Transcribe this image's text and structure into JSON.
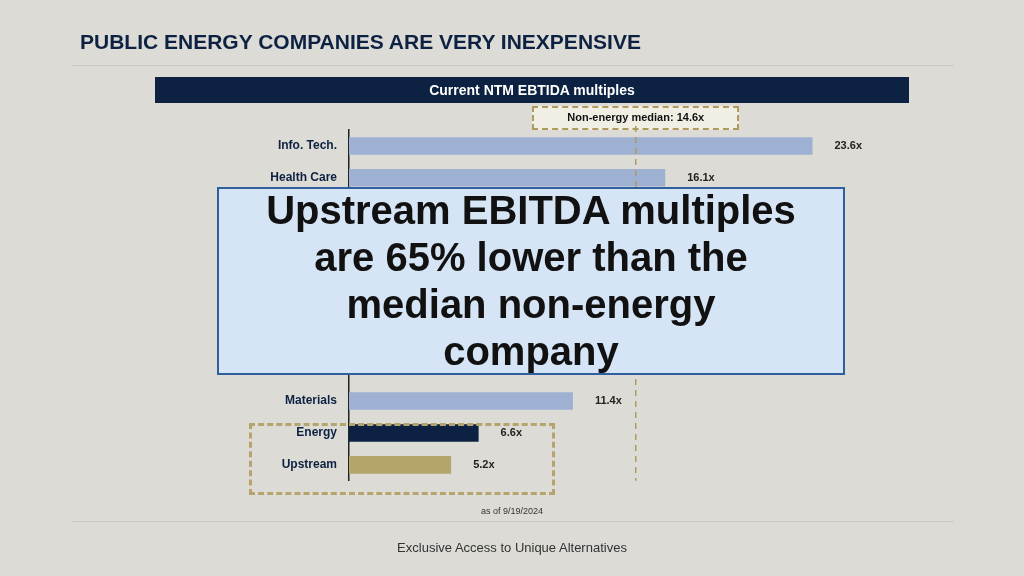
{
  "chart_data": {
    "type": "bar",
    "orientation": "horizontal",
    "title": "PUBLIC ENERGY COMPANIES ARE  VERY INEXPENSIVE",
    "subtitle": "Current NTM EBTIDA multiples",
    "categories": [
      "Info. Tech.",
      "Health Care",
      null,
      null,
      null,
      null,
      null,
      null,
      "Materials",
      "Energy",
      "Upstream"
    ],
    "values": [
      23.6,
      16.1,
      null,
      null,
      null,
      null,
      null,
      null,
      11.4,
      6.6,
      5.2
    ],
    "value_labels": [
      "23.6x",
      "16.1x",
      null,
      null,
      null,
      null,
      null,
      null,
      "11.4x",
      "6.6x",
      "5.2x"
    ],
    "colors": [
      "#9eb1d3",
      "#9eb1d3",
      "#9eb1d3",
      "#9eb1d3",
      "#9eb1d3",
      "#9eb1d3",
      "#9eb1d3",
      "#9eb1d3",
      "#9eb1d3",
      "#0d2242",
      "#b5a46c"
    ],
    "tick_labels": "y",
    "grid": false,
    "legend": false,
    "ref_lines": [
      {
        "axis": "x",
        "value": 14.6,
        "label": "Non-energy median: 14.6x",
        "color": "#b09a5e",
        "line_style": "dashed"
      }
    ],
    "annotations": [
      "Upstream EBITDA multiples are 65% lower than the median non-energy company",
      "as of 9/19/2024",
      "Exclusive Access to Unique Alternatives"
    ]
  }
}
